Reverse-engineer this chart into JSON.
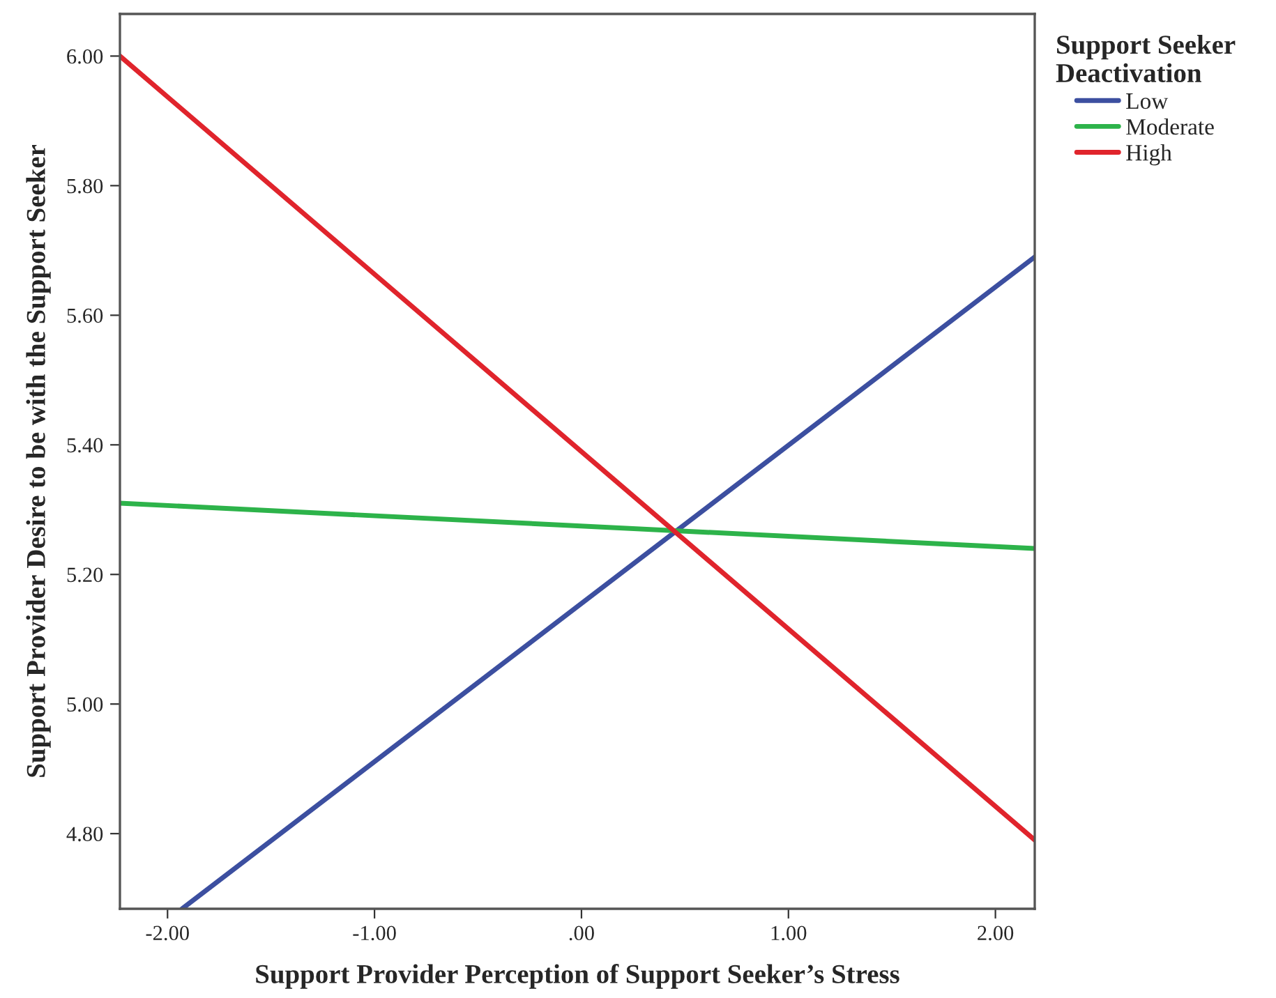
{
  "chart_data": {
    "type": "line",
    "xlabel": "Support Provider Perception of Support Seeker’s Stress",
    "ylabel": "Support Provider Desire to be with the Support Seeker",
    "legend_title": "Support Seeker\nDeactivation",
    "series": [
      {
        "name": "Low",
        "color": "#3c4fa0",
        "x": [
          -1.93,
          2.19
        ],
        "values": [
          4.684,
          5.69
        ]
      },
      {
        "name": "Moderate",
        "color": "#2db34a",
        "x": [
          -2.23,
          2.19
        ],
        "values": [
          5.31,
          5.24
        ]
      },
      {
        "name": "High",
        "color": "#e0242c",
        "x": [
          -2.23,
          2.19
        ],
        "values": [
          6.0,
          4.79
        ]
      }
    ],
    "xlim": [
      -2.23,
      2.19
    ],
    "ylim": [
      4.684,
      6.065
    ],
    "xticks": [
      {
        "value": -2,
        "label": "-2.00"
      },
      {
        "value": -1,
        "label": "-1.00"
      },
      {
        "value": 0,
        "label": ".00"
      },
      {
        "value": 1,
        "label": "1.00"
      },
      {
        "value": 2,
        "label": "2.00"
      }
    ],
    "yticks": [
      {
        "value": 4.8,
        "label": "4.80"
      },
      {
        "value": 5.0,
        "label": "5.00"
      },
      {
        "value": 5.2,
        "label": "5.20"
      },
      {
        "value": 5.4,
        "label": "5.40"
      },
      {
        "value": 5.6,
        "label": "5.60"
      },
      {
        "value": 5.8,
        "label": "5.80"
      },
      {
        "value": 6.0,
        "label": "6.00"
      }
    ],
    "grid": false,
    "legend": "top right",
    "marker": "none",
    "line_style": "solid"
  }
}
